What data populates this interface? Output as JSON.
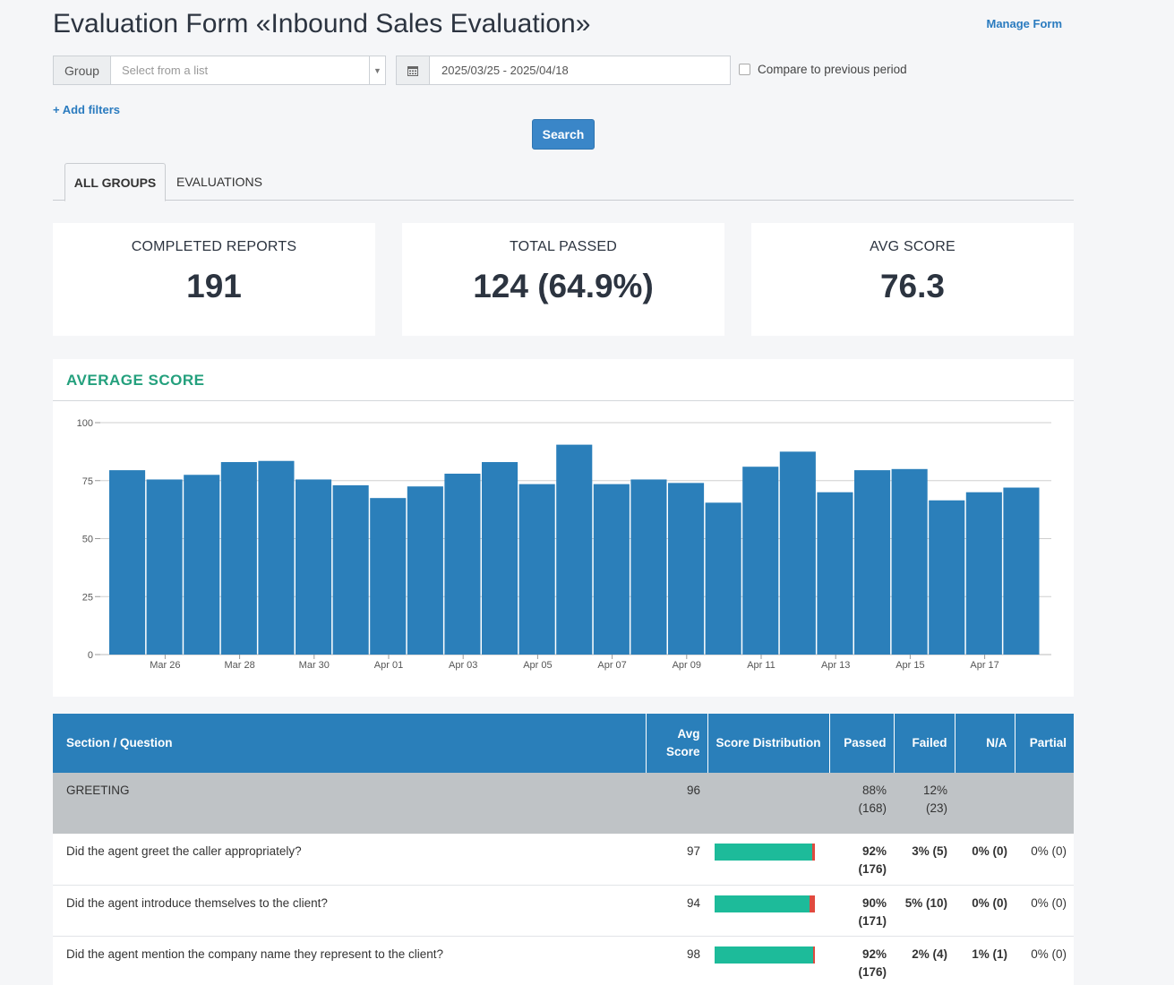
{
  "header": {
    "title": "Evaluation Form «Inbound Sales Evaluation»",
    "manage_link": "Manage Form"
  },
  "filters": {
    "group_label": "Group",
    "group_placeholder": "Select from a list",
    "date_range": "2025/03/25 - 2025/04/18",
    "compare_label": "Compare to previous period",
    "compare_checked": false,
    "add_filters": "+ Add filters",
    "search_label": "Search"
  },
  "tabs": [
    {
      "label": "ALL GROUPS",
      "active": true
    },
    {
      "label": "EVALUATIONS",
      "active": false
    }
  ],
  "stats": {
    "completed": {
      "label": "COMPLETED REPORTS",
      "value": "191"
    },
    "passed": {
      "label": "TOTAL PASSED",
      "value": "124 (64.9%)"
    },
    "avg": {
      "label": "AVG SCORE",
      "value": "76.3"
    }
  },
  "chart_data": {
    "type": "bar",
    "title": "AVERAGE SCORE",
    "xlabel": "",
    "ylabel": "",
    "ylim": [
      0,
      100
    ],
    "yticks": [
      0,
      25,
      50,
      75,
      100
    ],
    "categories": [
      "Mar 25",
      "Mar 26",
      "Mar 27",
      "Mar 28",
      "Mar 29",
      "Mar 30",
      "Mar 31",
      "Apr 01",
      "Apr 02",
      "Apr 03",
      "Apr 04",
      "Apr 05",
      "Apr 06",
      "Apr 07",
      "Apr 08",
      "Apr 09",
      "Apr 10",
      "Apr 11",
      "Apr 12",
      "Apr 13",
      "Apr 14",
      "Apr 15",
      "Apr 16",
      "Apr 17",
      "Apr 18"
    ],
    "tick_labels": [
      "Mar 26",
      "Mar 28",
      "Mar 30",
      "Apr 01",
      "Apr 03",
      "Apr 05",
      "Apr 07",
      "Apr 09",
      "Apr 11",
      "Apr 13",
      "Apr 15",
      "Apr 17"
    ],
    "tick_label_indices": [
      1,
      3,
      5,
      7,
      9,
      11,
      13,
      15,
      17,
      19,
      21,
      23
    ],
    "values": [
      79.5,
      75.5,
      77.5,
      83,
      83.5,
      75.5,
      73,
      67.5,
      72.5,
      78,
      83,
      73.5,
      90.5,
      73.5,
      75.5,
      74,
      65.5,
      81,
      87.5,
      70,
      79.5,
      80,
      66.5,
      70,
      72
    ],
    "color": "#2b7fba",
    "grid": true
  },
  "table": {
    "headers": {
      "question": "Section / Question",
      "avg": "Avg Score",
      "dist": "Score Distribution",
      "passed": "Passed",
      "failed": "Failed",
      "na": "N/A",
      "partial": "Partial"
    },
    "section": {
      "name": "GREETING",
      "avg": "96",
      "passed": "88% (168)",
      "failed": "12% (23)"
    },
    "rows": [
      {
        "question": "Did the agent greet the caller appropriately?",
        "avg": "97",
        "pass_pct": 0.975,
        "passed": "92% (176)",
        "failed": "3% (5)",
        "na": "0% (0)",
        "partial": "0% (0)"
      },
      {
        "question": "Did the agent introduce themselves to the client?",
        "avg": "94",
        "pass_pct": 0.945,
        "passed": "90% (171)",
        "failed": "5% (10)",
        "na": "0% (0)",
        "partial": "0% (0)"
      },
      {
        "question": "Did the agent mention the company name they represent to the client?",
        "avg": "98",
        "pass_pct": 0.98,
        "passed": "92% (176)",
        "failed": "2% (4)",
        "na": "1% (1)",
        "partial": "0% (0)"
      }
    ],
    "colors": {
      "dist_pass": "#1dbb9a",
      "dist_fail": "#e04a3f"
    }
  }
}
